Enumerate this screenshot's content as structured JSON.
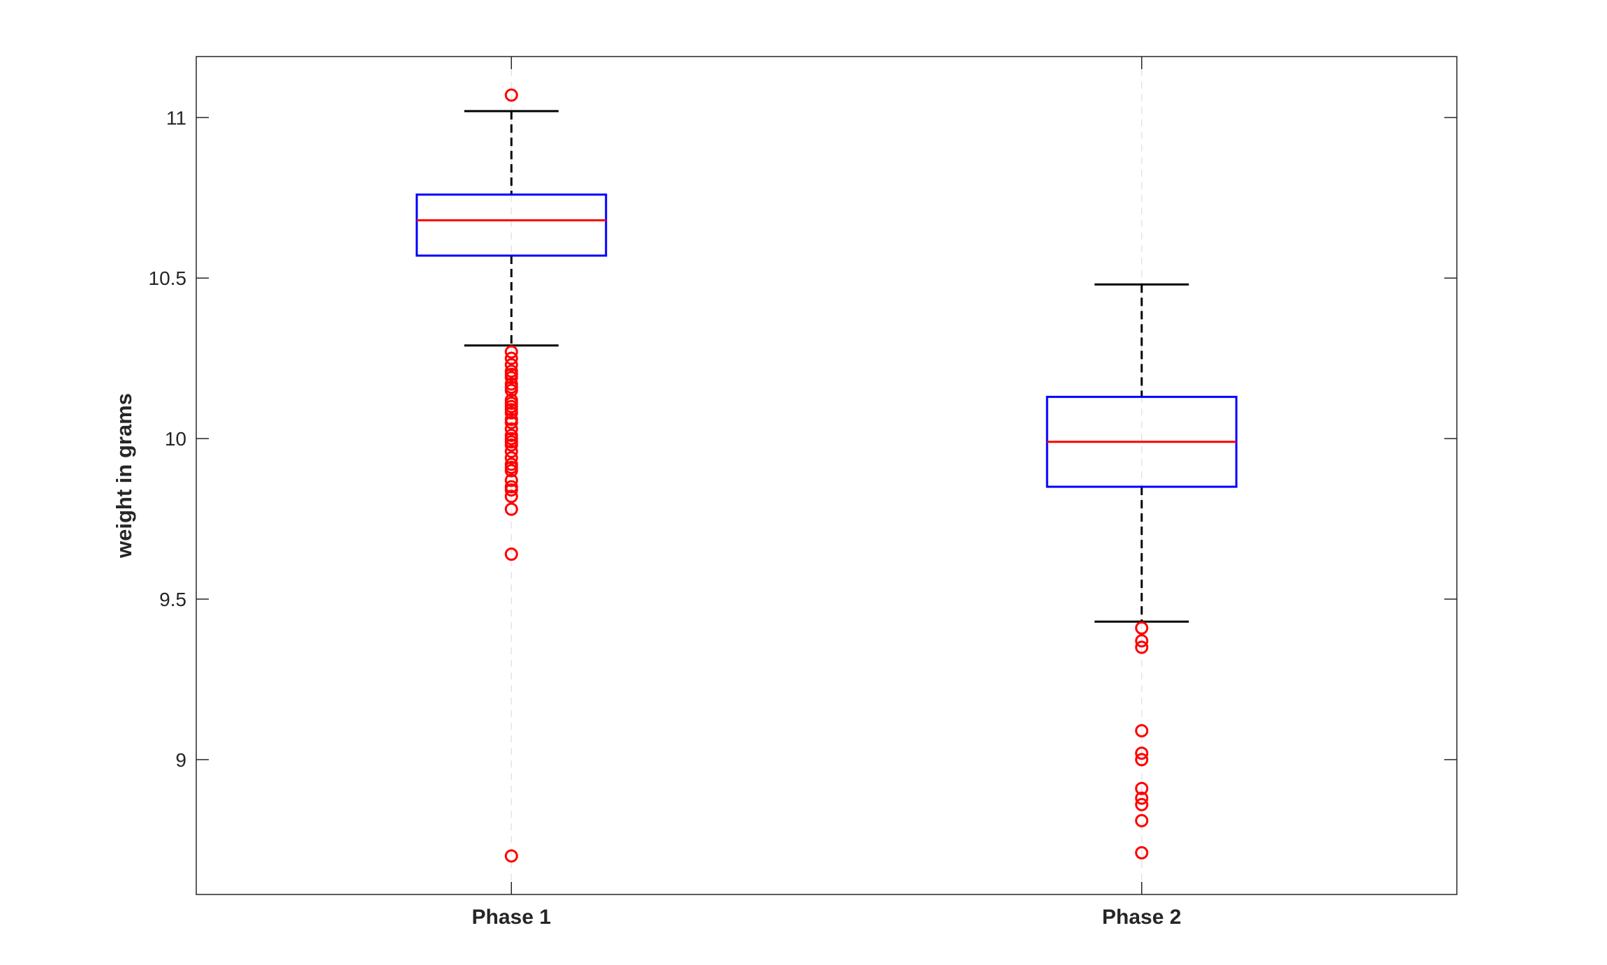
{
  "chart_data": {
    "type": "boxplot",
    "title": "",
    "xlabel": "",
    "ylabel": "weight in grams",
    "ylim": [
      8.58,
      11.19
    ],
    "yticks": [
      9,
      9.5,
      10,
      10.5,
      11
    ],
    "ytick_labels": [
      "9",
      "9.5",
      "10",
      "10.5",
      "11"
    ],
    "grid": false,
    "colors": {
      "box": "#0000ff",
      "median": "#ff0000",
      "whisker": "#000000",
      "outlier": "#ff0000",
      "axis": "#262626"
    },
    "categories": [
      "Phase 1",
      "Phase 2"
    ],
    "boxes": [
      {
        "category": "Phase 1",
        "whisker_low": 10.29,
        "q1": 10.57,
        "median": 10.68,
        "q3": 10.76,
        "whisker_high": 11.02,
        "outliers": [
          11.07,
          10.27,
          10.25,
          10.23,
          10.21,
          10.2,
          10.19,
          10.17,
          10.16,
          10.15,
          10.12,
          10.11,
          10.1,
          10.09,
          10.08,
          10.06,
          10.05,
          10.03,
          10.01,
          10.0,
          9.99,
          9.98,
          9.96,
          9.94,
          9.92,
          9.91,
          9.9,
          9.87,
          9.85,
          9.84,
          9.82,
          9.78,
          9.64,
          8.7
        ]
      },
      {
        "category": "Phase 2",
        "whisker_low": 9.43,
        "q1": 9.85,
        "median": 9.99,
        "q3": 10.13,
        "whisker_high": 10.48,
        "outliers": [
          9.41,
          9.37,
          9.35,
          9.09,
          9.02,
          9.0,
          8.91,
          8.88,
          8.86,
          8.81,
          8.71
        ]
      }
    ]
  }
}
